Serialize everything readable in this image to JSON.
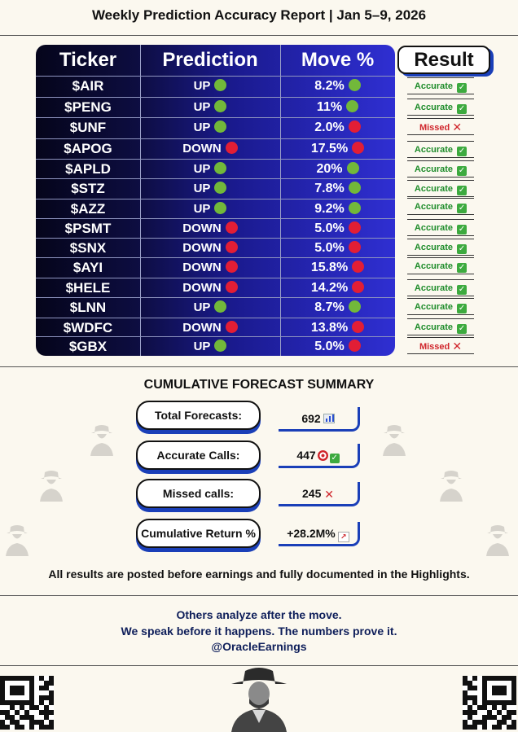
{
  "title": "Weekly Prediction Accuracy Report | Jan 5–9, 2026",
  "table": {
    "headers": {
      "ticker": "Ticker",
      "prediction": "Prediction",
      "move": "Move %",
      "result": "Result"
    },
    "rows": [
      {
        "ticker": "$AIR",
        "prediction": "UP",
        "pred_dot": "green",
        "move": "8.2%",
        "move_dot": "green",
        "result": "Accurate",
        "status": "accurate"
      },
      {
        "ticker": "$PENG",
        "prediction": "UP",
        "pred_dot": "green",
        "move": "11%",
        "move_dot": "green",
        "result": "Accurate",
        "status": "accurate"
      },
      {
        "ticker": "$UNF",
        "prediction": "UP",
        "pred_dot": "green",
        "move": "2.0%",
        "move_dot": "red",
        "result": "Missed",
        "status": "missed"
      },
      {
        "ticker": "$APOG",
        "prediction": "DOWN",
        "pred_dot": "red",
        "move": "17.5%",
        "move_dot": "red",
        "result": "Accurate",
        "status": "accurate"
      },
      {
        "ticker": "$APLD",
        "prediction": "UP",
        "pred_dot": "green",
        "move": "20%",
        "move_dot": "green",
        "result": "Accurate",
        "status": "accurate"
      },
      {
        "ticker": "$STZ",
        "prediction": "UP",
        "pred_dot": "green",
        "move": "7.8%",
        "move_dot": "green",
        "result": "Accurate",
        "status": "accurate"
      },
      {
        "ticker": "$AZZ",
        "prediction": "UP",
        "pred_dot": "green",
        "move": "9.2%",
        "move_dot": "green",
        "result": "Accurate",
        "status": "accurate"
      },
      {
        "ticker": "$PSMT",
        "prediction": "DOWN",
        "pred_dot": "red",
        "move": "5.0%",
        "move_dot": "red",
        "result": "Accurate",
        "status": "accurate"
      },
      {
        "ticker": "$SNX",
        "prediction": "DOWN",
        "pred_dot": "red",
        "move": "5.0%",
        "move_dot": "red",
        "result": "Accurate",
        "status": "accurate"
      },
      {
        "ticker": "$AYI",
        "prediction": "DOWN",
        "pred_dot": "red",
        "move": "15.8%",
        "move_dot": "red",
        "result": "Accurate",
        "status": "accurate"
      },
      {
        "ticker": "$HELE",
        "prediction": "DOWN",
        "pred_dot": "red",
        "move": "14.2%",
        "move_dot": "red",
        "result": "Accurate",
        "status": "accurate"
      },
      {
        "ticker": "$LNN",
        "prediction": "UP",
        "pred_dot": "green",
        "move": "8.7%",
        "move_dot": "green",
        "result": "Accurate",
        "status": "accurate"
      },
      {
        "ticker": "$WDFC",
        "prediction": "DOWN",
        "pred_dot": "red",
        "move": "13.8%",
        "move_dot": "red",
        "result": "Accurate",
        "status": "accurate"
      },
      {
        "ticker": "$GBX",
        "prediction": "UP",
        "pred_dot": "green",
        "move": "5.0%",
        "move_dot": "red",
        "result": "Missed",
        "status": "missed"
      }
    ]
  },
  "summary": {
    "title": "CUMULATIVE FORECAST SUMMARY",
    "items": [
      {
        "label": "Total Forecasts:",
        "value": "692",
        "icon": "bar-chart-icon"
      },
      {
        "label": "Accurate Calls:",
        "value": "447",
        "icon": "target-check-icon"
      },
      {
        "label": "Missed calls:",
        "value": "245",
        "icon": "cross-icon"
      },
      {
        "label": "Cumulative Return %",
        "value": "+28.2M%",
        "icon": "trend-up-icon"
      }
    ]
  },
  "note": "All results are posted before earnings and fully documented in the Highlights.",
  "slogan": {
    "line1": "Others analyze after the move.",
    "line2": "We speak before it happens. The numbers prove it.",
    "handle": "@OracleEarnings"
  },
  "colors": {
    "accent_blue": "#1a3fb8",
    "green_dot": "#72b83a",
    "red_dot": "#e21e35",
    "accurate_text": "#1e8c2a",
    "missed_text": "#d0262c"
  }
}
